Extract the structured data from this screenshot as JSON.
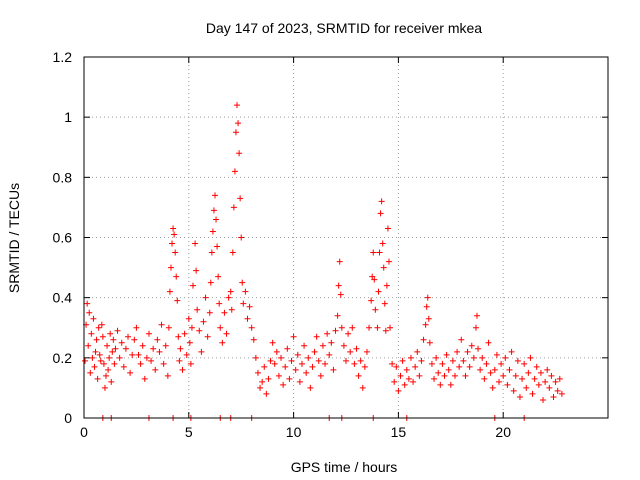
{
  "chart_data": {
    "type": "scatter",
    "title": "Day 147 of 2023, SRMTID for receiver mkea",
    "xlabel": "GPS time / hours",
    "ylabel": "SRMTID / TECUs",
    "xlim": [
      0,
      25
    ],
    "ylim": [
      0,
      1.2
    ],
    "x_ticks": [
      "0",
      "5",
      "10",
      "15",
      "20"
    ],
    "x_tick_values": [
      0,
      5,
      10,
      15,
      20
    ],
    "y_ticks": [
      "0",
      "0.2",
      "0.4",
      "0.6",
      "0.8",
      "1",
      "1.2"
    ],
    "y_tick_values": [
      0,
      0.2,
      0.4,
      0.6,
      0.8,
      1.0,
      1.2
    ],
    "grid": true,
    "marker": "plus",
    "color": "#ff0000",
    "series": [
      {
        "name": "SRMTID",
        "points": [
          [
            0.05,
            0.19
          ],
          [
            0.1,
            0.31
          ],
          [
            0.15,
            0.38
          ],
          [
            0.2,
            0.24
          ],
          [
            0.25,
            0.35
          ],
          [
            0.3,
            0.15
          ],
          [
            0.35,
            0.28
          ],
          [
            0.4,
            0.2
          ],
          [
            0.45,
            0.33
          ],
          [
            0.5,
            0.17
          ],
          [
            0.55,
            0.22
          ],
          [
            0.6,
            0.26
          ],
          [
            0.65,
            0.13
          ],
          [
            0.7,
            0.3
          ],
          [
            0.75,
            0.21
          ],
          [
            0.8,
            0.19
          ],
          [
            0.85,
            0.31
          ],
          [
            0.9,
            0.27
          ],
          [
            0.95,
            0.18
          ],
          [
            1.0,
            0.1
          ],
          [
            1.05,
            0.14
          ],
          [
            1.1,
            0.24
          ],
          [
            1.15,
            0.16
          ],
          [
            1.2,
            0.2
          ],
          [
            1.25,
            0.28
          ],
          [
            1.3,
            0.12
          ],
          [
            1.35,
            0.22
          ],
          [
            1.4,
            0.26
          ],
          [
            1.45,
            0.18
          ],
          [
            1.5,
            0.23
          ],
          [
            1.6,
            0.29
          ],
          [
            1.7,
            0.2
          ],
          [
            1.8,
            0.25
          ],
          [
            1.9,
            0.17
          ],
          [
            2.0,
            0.23
          ],
          [
            2.1,
            0.27
          ],
          [
            2.2,
            0.15
          ],
          [
            2.3,
            0.21
          ],
          [
            2.4,
            0.26
          ],
          [
            2.5,
            0.3
          ],
          [
            2.6,
            0.21
          ],
          [
            2.7,
            0.18
          ],
          [
            2.8,
            0.24
          ],
          [
            2.9,
            0.13
          ],
          [
            3.0,
            0.2
          ],
          [
            3.1,
            0.28
          ],
          [
            3.2,
            0.19
          ],
          [
            3.3,
            0.23
          ],
          [
            3.4,
            0.16
          ],
          [
            3.5,
            0.26
          ],
          [
            3.6,
            0.22
          ],
          [
            3.7,
            0.31
          ],
          [
            3.8,
            0.18
          ],
          [
            3.9,
            0.24
          ],
          [
            4.0,
            0.14
          ],
          [
            4.05,
            0.3
          ],
          [
            4.1,
            0.42
          ],
          [
            4.15,
            0.5
          ],
          [
            4.2,
            0.58
          ],
          [
            4.25,
            0.63
          ],
          [
            4.3,
            0.61
          ],
          [
            4.35,
            0.55
          ],
          [
            4.4,
            0.47
          ],
          [
            4.45,
            0.39
          ],
          [
            4.5,
            0.27
          ],
          [
            4.55,
            0.19
          ],
          [
            4.6,
            0.23
          ],
          [
            4.7,
            0.16
          ],
          [
            4.8,
            0.28
          ],
          [
            4.9,
            0.21
          ],
          [
            5.0,
            0.33
          ],
          [
            5.05,
            0.25
          ],
          [
            5.1,
            0.18
          ],
          [
            5.15,
            0.3
          ],
          [
            5.2,
            0.44
          ],
          [
            5.3,
            0.58
          ],
          [
            5.35,
            0.49
          ],
          [
            5.4,
            0.36
          ],
          [
            5.5,
            0.29
          ],
          [
            5.6,
            0.22
          ],
          [
            5.7,
            0.32
          ],
          [
            5.8,
            0.4
          ],
          [
            5.9,
            0.27
          ],
          [
            6.0,
            0.35
          ],
          [
            6.05,
            0.45
          ],
          [
            6.1,
            0.55
          ],
          [
            6.15,
            0.62
          ],
          [
            6.2,
            0.69
          ],
          [
            6.25,
            0.74
          ],
          [
            6.3,
            0.66
          ],
          [
            6.35,
            0.57
          ],
          [
            6.4,
            0.47
          ],
          [
            6.45,
            0.38
          ],
          [
            6.5,
            0.3
          ],
          [
            6.6,
            0.25
          ],
          [
            6.7,
            0.35
          ],
          [
            6.8,
            0.28
          ],
          [
            6.9,
            0.4
          ],
          [
            7.0,
            0.42
          ],
          [
            7.05,
            0.36
          ],
          [
            7.1,
            0.55
          ],
          [
            7.15,
            0.7
          ],
          [
            7.2,
            0.82
          ],
          [
            7.25,
            0.95
          ],
          [
            7.3,
            1.04
          ],
          [
            7.35,
            0.98
          ],
          [
            7.4,
            0.88
          ],
          [
            7.45,
            0.73
          ],
          [
            7.5,
            0.6
          ],
          [
            7.55,
            0.45
          ],
          [
            7.6,
            0.38
          ],
          [
            7.7,
            0.42
          ],
          [
            7.8,
            0.33
          ],
          [
            7.9,
            0.37
          ],
          [
            8.0,
            0.3
          ],
          [
            8.1,
            0.26
          ],
          [
            8.2,
            0.2
          ],
          [
            8.3,
            0.15
          ],
          [
            8.4,
            0.1
          ],
          [
            8.5,
            0.12
          ],
          [
            8.6,
            0.17
          ],
          [
            8.7,
            0.08
          ],
          [
            8.8,
            0.13
          ],
          [
            8.9,
            0.19
          ],
          [
            9.0,
            0.25
          ],
          [
            9.1,
            0.18
          ],
          [
            9.2,
            0.22
          ],
          [
            9.3,
            0.14
          ],
          [
            9.4,
            0.2
          ],
          [
            9.5,
            0.11
          ],
          [
            9.6,
            0.17
          ],
          [
            9.7,
            0.23
          ],
          [
            9.8,
            0.13
          ],
          [
            9.9,
            0.19
          ],
          [
            10.0,
            0.27
          ],
          [
            10.1,
            0.16
          ],
          [
            10.2,
            0.21
          ],
          [
            10.3,
            0.12
          ],
          [
            10.4,
            0.18
          ],
          [
            10.5,
            0.24
          ],
          [
            10.6,
            0.15
          ],
          [
            10.7,
            0.2
          ],
          [
            10.8,
            0.1
          ],
          [
            10.9,
            0.17
          ],
          [
            11.0,
            0.22
          ],
          [
            11.1,
            0.27
          ],
          [
            11.2,
            0.19
          ],
          [
            11.3,
            0.14
          ],
          [
            11.4,
            0.24
          ],
          [
            11.5,
            0.18
          ],
          [
            11.6,
            0.28
          ],
          [
            11.7,
            0.21
          ],
          [
            11.8,
            0.25
          ],
          [
            11.9,
            0.16
          ],
          [
            12.0,
            0.29
          ],
          [
            12.1,
            0.34
          ],
          [
            12.15,
            0.44
          ],
          [
            12.2,
            0.52
          ],
          [
            12.25,
            0.41
          ],
          [
            12.3,
            0.3
          ],
          [
            12.4,
            0.24
          ],
          [
            12.5,
            0.19
          ],
          [
            12.6,
            0.28
          ],
          [
            12.7,
            0.22
          ],
          [
            12.8,
            0.3
          ],
          [
            12.9,
            0.18
          ],
          [
            13.0,
            0.23
          ],
          [
            13.1,
            0.14
          ],
          [
            13.2,
            0.19
          ],
          [
            13.3,
            0.1
          ],
          [
            13.4,
            0.17
          ],
          [
            13.5,
            0.22
          ],
          [
            13.6,
            0.3
          ],
          [
            13.7,
            0.39
          ],
          [
            13.75,
            0.47
          ],
          [
            13.8,
            0.55
          ],
          [
            13.85,
            0.46
          ],
          [
            13.9,
            0.36
          ],
          [
            14.0,
            0.3
          ],
          [
            14.05,
            0.42
          ],
          [
            14.1,
            0.55
          ],
          [
            14.15,
            0.68
          ],
          [
            14.2,
            0.72
          ],
          [
            14.25,
            0.58
          ],
          [
            14.3,
            0.5
          ],
          [
            14.35,
            0.38
          ],
          [
            14.4,
            0.29
          ],
          [
            14.45,
            0.44
          ],
          [
            14.5,
            0.63
          ],
          [
            14.55,
            0.52
          ],
          [
            14.6,
            0.3
          ],
          [
            14.7,
            0.18
          ],
          [
            14.8,
            0.12
          ],
          [
            14.9,
            0.17
          ],
          [
            15.0,
            0.09
          ],
          [
            15.1,
            0.14
          ],
          [
            15.2,
            0.19
          ],
          [
            15.3,
            0.11
          ],
          [
            15.4,
            0.16
          ],
          [
            15.5,
            0.13
          ],
          [
            15.6,
            0.2
          ],
          [
            15.7,
            0.12
          ],
          [
            15.8,
            0.17
          ],
          [
            15.9,
            0.22
          ],
          [
            16.0,
            0.14
          ],
          [
            16.1,
            0.19
          ],
          [
            16.2,
            0.26
          ],
          [
            16.3,
            0.31
          ],
          [
            16.35,
            0.37
          ],
          [
            16.4,
            0.4
          ],
          [
            16.45,
            0.33
          ],
          [
            16.5,
            0.25
          ],
          [
            16.6,
            0.18
          ],
          [
            16.7,
            0.13
          ],
          [
            16.8,
            0.2
          ],
          [
            16.9,
            0.15
          ],
          [
            17.0,
            0.11
          ],
          [
            17.1,
            0.18
          ],
          [
            17.2,
            0.14
          ],
          [
            17.3,
            0.21
          ],
          [
            17.4,
            0.16
          ],
          [
            17.5,
            0.11
          ],
          [
            17.6,
            0.19
          ],
          [
            17.7,
            0.14
          ],
          [
            17.8,
            0.22
          ],
          [
            17.9,
            0.17
          ],
          [
            18.0,
            0.26
          ],
          [
            18.1,
            0.19
          ],
          [
            18.2,
            0.14
          ],
          [
            18.3,
            0.22
          ],
          [
            18.4,
            0.17
          ],
          [
            18.5,
            0.24
          ],
          [
            18.6,
            0.2
          ],
          [
            18.7,
            0.3
          ],
          [
            18.75,
            0.34
          ],
          [
            18.8,
            0.23
          ],
          [
            18.9,
            0.16
          ],
          [
            19.0,
            0.2
          ],
          [
            19.1,
            0.13
          ],
          [
            19.2,
            0.18
          ],
          [
            19.3,
            0.25
          ],
          [
            19.4,
            0.15
          ],
          [
            19.5,
            0.1
          ],
          [
            19.6,
            0.16
          ],
          [
            19.7,
            0.21
          ],
          [
            19.8,
            0.12
          ],
          [
            19.9,
            0.18
          ],
          [
            20.0,
            0.14
          ],
          [
            20.1,
            0.2
          ],
          [
            20.2,
            0.11
          ],
          [
            20.3,
            0.16
          ],
          [
            20.4,
            0.22
          ],
          [
            20.5,
            0.09
          ],
          [
            20.6,
            0.14
          ],
          [
            20.7,
            0.19
          ],
          [
            20.8,
            0.07
          ],
          [
            20.9,
            0.13
          ],
          [
            21.0,
            0.18
          ],
          [
            21.1,
            0.1
          ],
          [
            21.2,
            0.15
          ],
          [
            21.3,
            0.2
          ],
          [
            21.4,
            0.08
          ],
          [
            21.5,
            0.13
          ],
          [
            21.6,
            0.17
          ],
          [
            21.7,
            0.11
          ],
          [
            21.8,
            0.15
          ],
          [
            21.9,
            0.06
          ],
          [
            22.0,
            0.12
          ],
          [
            22.1,
            0.16
          ],
          [
            22.2,
            0.1
          ],
          [
            22.3,
            0.14
          ],
          [
            22.4,
            0.07
          ],
          [
            22.5,
            0.12
          ],
          [
            22.6,
            0.09
          ],
          [
            22.7,
            0.13
          ],
          [
            22.8,
            0.08
          ],
          [
            4.25,
            0.0
          ],
          [
            5.1,
            0.0
          ],
          [
            7.0,
            0.0
          ],
          [
            13.8,
            0.0
          ],
          [
            0.9,
            0.0
          ],
          [
            1.3,
            0.0
          ],
          [
            3.1,
            0.0
          ],
          [
            6.5,
            0.0
          ],
          [
            8.0,
            0.0
          ],
          [
            11.7,
            0.0
          ],
          [
            12.3,
            0.0
          ],
          [
            15.4,
            0.0
          ],
          [
            19.6,
            0.0
          ],
          [
            21.0,
            0.0
          ]
        ]
      }
    ]
  }
}
